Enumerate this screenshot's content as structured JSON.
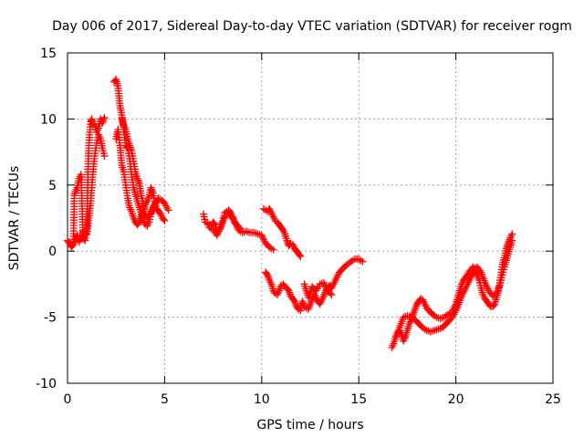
{
  "chart_data": {
    "type": "scatter",
    "title": "Day 006 of 2017, Sidereal Day-to-day VTEC variation (SDTVAR) for receiver rogm",
    "xlabel": "GPS time / hours",
    "ylabel": "SDTVAR / TECUs",
    "xlim": [
      0,
      25
    ],
    "ylim": [
      -10,
      15
    ],
    "xticks": [
      0,
      5,
      10,
      15,
      20,
      25
    ],
    "yticks": [
      -10,
      -5,
      0,
      5,
      10,
      15
    ],
    "xtick_labels": [
      "0",
      "5",
      "10",
      "15",
      "20",
      "25"
    ],
    "ytick_labels": [
      "-10",
      "-5",
      "0",
      "5",
      "10",
      "15"
    ],
    "grid": true,
    "marker": "plus",
    "color": "#ff0000",
    "series": [
      {
        "name": "seg1",
        "x": [
          0.0,
          0.1,
          0.2,
          0.3,
          0.35,
          0.4,
          0.5,
          0.6,
          0.7,
          0.8,
          0.9,
          1.0,
          1.05,
          1.1,
          1.15,
          1.2,
          1.25,
          1.3,
          1.4,
          1.5,
          1.6,
          1.7,
          1.8,
          1.9
        ],
        "y": [
          0.8,
          0.6,
          0.3,
          0.5,
          4.2,
          4.5,
          4.8,
          5.5,
          5.8,
          1.0,
          0.8,
          1.8,
          6.0,
          8.0,
          9.0,
          9.8,
          10.0,
          9.5,
          9.6,
          9.0,
          9.3,
          10.0,
          9.7,
          10.1
        ]
      },
      {
        "name": "seg1b",
        "x": [
          0.3,
          0.4,
          0.5,
          0.6,
          0.7,
          0.8,
          0.9,
          1.0,
          1.1,
          1.2,
          1.3,
          1.4,
          1.5,
          1.6,
          1.7,
          1.8,
          1.9
        ],
        "y": [
          0.5,
          0.9,
          1.2,
          0.7,
          1.0,
          1.5,
          1.2,
          1.3,
          2.5,
          3.8,
          5.8,
          7.2,
          8.2,
          8.8,
          8.5,
          7.8,
          7.2
        ]
      },
      {
        "name": "seg2",
        "x": [
          2.4,
          2.5,
          2.6,
          2.7,
          2.8,
          2.9,
          3.0,
          3.1,
          3.2,
          3.3,
          3.4,
          3.5,
          3.6,
          3.7,
          3.8,
          3.9,
          4.0,
          4.1,
          4.2,
          4.3,
          4.4,
          4.5,
          4.6,
          4.7,
          4.8,
          4.9,
          5.0,
          5.2
        ],
        "y": [
          12.8,
          13.0,
          12.5,
          11.0,
          10.3,
          9.2,
          8.0,
          7.8,
          7.0,
          5.8,
          4.8,
          4.3,
          3.8,
          3.3,
          2.8,
          2.4,
          2.0,
          1.9,
          2.2,
          2.8,
          3.2,
          3.5,
          3.8,
          4.0,
          3.9,
          3.8,
          3.6,
          3.1
        ]
      },
      {
        "name": "seg2b",
        "x": [
          2.5,
          2.6,
          2.7,
          2.8,
          2.9,
          3.0,
          3.1,
          3.2,
          3.3,
          3.4,
          3.5,
          3.6,
          3.7,
          3.8,
          3.9,
          4.0,
          4.1,
          4.2,
          4.3,
          4.4,
          4.5,
          4.6,
          4.7,
          4.8,
          4.9,
          5.0
        ],
        "y": [
          8.5,
          9.2,
          8.0,
          6.5,
          6.0,
          5.0,
          4.0,
          3.3,
          3.0,
          2.5,
          2.2,
          2.0,
          2.2,
          2.6,
          3.0,
          3.5,
          3.8,
          4.1,
          4.8,
          4.4,
          3.8,
          3.2,
          3.0,
          2.8,
          2.5,
          2.3
        ]
      },
      {
        "name": "seg2c",
        "x": [
          2.8,
          2.9,
          3.0,
          3.1,
          3.2,
          3.3,
          3.4,
          3.5,
          3.6,
          3.7,
          3.8,
          3.9,
          4.0,
          4.1,
          4.2,
          4.3,
          4.4,
          4.5,
          4.6
        ],
        "y": [
          10.0,
          9.5,
          9.2,
          8.5,
          8.0,
          7.6,
          6.8,
          6.0,
          5.5,
          5.1,
          4.2,
          3.6,
          2.8,
          2.5,
          2.6,
          2.9,
          3.3,
          3.6,
          3.8
        ]
      },
      {
        "name": "seg3",
        "x": [
          7.0,
          7.1,
          7.2,
          7.3,
          7.4,
          7.5,
          7.6,
          7.7,
          7.8,
          7.9,
          8.0,
          8.1,
          8.2,
          8.3,
          8.4,
          8.5,
          8.6,
          8.7,
          8.8,
          8.9,
          9.0,
          9.2,
          9.4,
          9.6,
          9.8,
          10.0,
          10.2,
          10.4,
          10.6
        ],
        "y": [
          2.8,
          2.2,
          2.1,
          2.0,
          1.9,
          2.2,
          2.0,
          1.5,
          1.5,
          2.0,
          2.3,
          2.9,
          3.0,
          3.1,
          2.9,
          2.6,
          2.2,
          2.0,
          1.6,
          1.5,
          1.4,
          1.5,
          1.4,
          1.4,
          1.3,
          1.2,
          0.6,
          0.3,
          0.1
        ]
      },
      {
        "name": "seg3b",
        "x": [
          7.3,
          7.5,
          7.7,
          7.9,
          8.1,
          8.3,
          8.5,
          8.7,
          8.9
        ],
        "y": [
          1.8,
          1.6,
          1.2,
          1.8,
          2.6,
          2.8,
          2.5,
          2.0,
          1.7
        ]
      },
      {
        "name": "seg4",
        "x": [
          10.1,
          10.2,
          10.3,
          10.4,
          10.5,
          10.6,
          10.7,
          10.8,
          10.9,
          11.0,
          11.1,
          11.2,
          11.3,
          11.4,
          11.5,
          11.6,
          11.7,
          11.8,
          11.9,
          12.0
        ],
        "y": [
          3.2,
          3.1,
          3.0,
          3.2,
          2.9,
          2.6,
          2.3,
          2.2,
          2.0,
          1.8,
          1.6,
          1.3,
          0.8,
          0.4,
          0.6,
          0.5,
          0.2,
          0.0,
          -0.2,
          -0.4
        ]
      },
      {
        "name": "seg5",
        "x": [
          10.2,
          10.3,
          10.4,
          10.5,
          10.6,
          10.7,
          10.8,
          10.9,
          11.0,
          11.1,
          11.2,
          11.3,
          11.4,
          11.5,
          11.6,
          11.7,
          11.8,
          11.9,
          12.0,
          12.1,
          12.2,
          12.3,
          12.4,
          12.5,
          12.6,
          12.7,
          12.8,
          12.9,
          13.0,
          13.1,
          13.2,
          13.3,
          13.4,
          13.5,
          13.6,
          13.7,
          13.8,
          13.9,
          14.0,
          14.2,
          14.4,
          14.6,
          14.8,
          15.0,
          15.2
        ],
        "y": [
          -1.6,
          -1.8,
          -2.2,
          -2.5,
          -3.0,
          -3.2,
          -3.3,
          -3.0,
          -2.6,
          -2.5,
          -2.7,
          -2.8,
          -3.0,
          -3.4,
          -3.6,
          -3.8,
          -4.2,
          -4.4,
          -4.5,
          -3.8,
          -4.2,
          -4.3,
          -4.4,
          -4.0,
          -3.6,
          -3.2,
          -3.6,
          -3.8,
          -4.0,
          -3.7,
          -3.4,
          -3.0,
          -2.8,
          -2.6,
          -2.8,
          -2.5,
          -2.2,
          -1.9,
          -1.6,
          -1.3,
          -1.0,
          -0.8,
          -0.6,
          -0.6,
          -0.8
        ]
      },
      {
        "name": "seg5b",
        "x": [
          12.2,
          12.4,
          12.6,
          12.8,
          13.0,
          13.2,
          13.4,
          13.6
        ],
        "y": [
          -2.5,
          -3.5,
          -2.7,
          -3.0,
          -2.5,
          -2.4,
          -3.0,
          -3.3
        ]
      },
      {
        "name": "seg6",
        "x": [
          16.7,
          16.8,
          16.9,
          17.0,
          17.1,
          17.2,
          17.3,
          17.4,
          17.5,
          17.6,
          17.7,
          17.8,
          17.9,
          18.0,
          18.1,
          18.2,
          18.3,
          18.4,
          18.5,
          18.6,
          18.7,
          18.8,
          18.9,
          19.0,
          19.2,
          19.4,
          19.6,
          19.8,
          20.0,
          20.1,
          20.2,
          20.3,
          20.4,
          20.5,
          20.6,
          20.7,
          20.8,
          20.9,
          21.0,
          21.1,
          21.2,
          21.3,
          21.4,
          21.5,
          21.6,
          21.7,
          21.8,
          21.9,
          22.0,
          22.1,
          22.2,
          22.3,
          22.4,
          22.5,
          22.6,
          22.7,
          22.8,
          22.9
        ],
        "y": [
          -7.3,
          -7.0,
          -6.5,
          -6.2,
          -6.0,
          -6.3,
          -6.8,
          -6.5,
          -6.0,
          -5.5,
          -5.2,
          -4.8,
          -4.4,
          -4.0,
          -3.8,
          -3.6,
          -3.7,
          -4.0,
          -4.3,
          -4.5,
          -4.6,
          -4.8,
          -4.9,
          -5.0,
          -5.1,
          -5.0,
          -4.8,
          -4.6,
          -4.0,
          -3.5,
          -3.0,
          -2.5,
          -2.2,
          -2.0,
          -1.8,
          -1.5,
          -1.4,
          -1.2,
          -1.3,
          -1.8,
          -2.2,
          -2.8,
          -3.3,
          -3.6,
          -3.8,
          -4.0,
          -4.2,
          -4.2,
          -4.0,
          -3.5,
          -3.0,
          -2.0,
          -1.0,
          -0.5,
          0.2,
          0.6,
          1.0,
          1.3
        ]
      },
      {
        "name": "seg6b",
        "x": [
          16.9,
          17.1,
          17.3,
          17.5,
          17.7,
          17.9,
          18.1,
          18.3,
          18.5,
          18.7,
          18.9,
          19.1,
          19.3,
          19.5,
          19.7,
          19.9,
          20.1,
          20.3,
          20.5,
          20.7,
          20.9,
          21.1,
          21.3,
          21.5,
          21.7,
          21.9,
          22.1,
          22.3,
          22.5,
          22.7,
          22.9
        ],
        "y": [
          -6.5,
          -5.8,
          -5.0,
          -4.9,
          -5.0,
          -5.2,
          -5.5,
          -5.8,
          -6.0,
          -6.1,
          -6.0,
          -5.9,
          -5.8,
          -5.5,
          -5.2,
          -4.8,
          -4.2,
          -3.4,
          -2.8,
          -2.2,
          -1.6,
          -1.2,
          -1.6,
          -2.4,
          -3.0,
          -3.4,
          -3.2,
          -2.4,
          -1.2,
          -0.2,
          0.8
        ]
      }
    ]
  }
}
